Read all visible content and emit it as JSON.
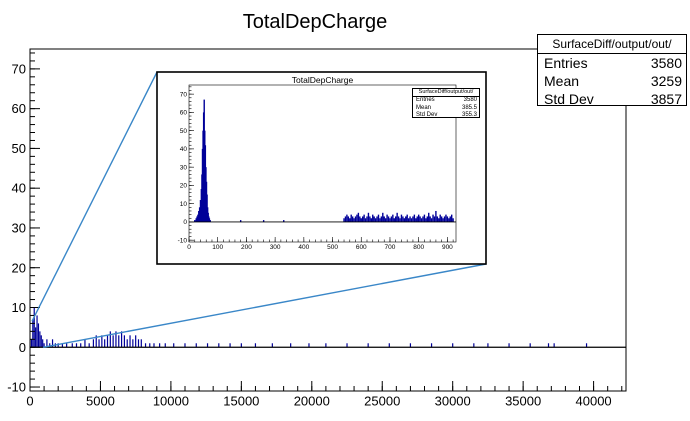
{
  "chart_data": [
    {
      "type": "bar",
      "title": "TotalDepCharge",
      "xlabel": "",
      "ylabel": "",
      "xlim": [
        0,
        42300
      ],
      "ylim": [
        -11,
        75
      ],
      "x_ticks": [
        0,
        5000,
        10000,
        15000,
        20000,
        25000,
        30000,
        35000,
        40000
      ],
      "y_ticks": [
        -10,
        0,
        10,
        20,
        30,
        40,
        50,
        60,
        70
      ],
      "bar_color": "#000099",
      "legend_position": "top-right",
      "stats": {
        "name": "SurfaceDiff/output/out/",
        "rows": [
          {
            "label": "Entries",
            "value": "3580"
          },
          {
            "label": "Mean",
            "value": "3259"
          },
          {
            "label": "Std Dev",
            "value": "3857"
          }
        ]
      },
      "bars": [
        [
          100,
          2
        ],
        [
          200,
          7
        ],
        [
          300,
          10
        ],
        [
          400,
          5
        ],
        [
          500,
          8
        ],
        [
          600,
          6
        ],
        [
          700,
          4
        ],
        [
          800,
          3
        ],
        [
          900,
          2
        ],
        [
          1000,
          1
        ],
        [
          1200,
          2
        ],
        [
          1400,
          1
        ],
        [
          1600,
          2
        ],
        [
          1800,
          1
        ],
        [
          2000,
          1
        ],
        [
          2300,
          1
        ],
        [
          2600,
          1
        ],
        [
          3000,
          1
        ],
        [
          3300,
          1
        ],
        [
          3600,
          1
        ],
        [
          3900,
          2
        ],
        [
          4200,
          1
        ],
        [
          4500,
          2
        ],
        [
          4700,
          3
        ],
        [
          4900,
          2
        ],
        [
          5100,
          3
        ],
        [
          5300,
          2
        ],
        [
          5500,
          3
        ],
        [
          5700,
          4
        ],
        [
          5900,
          3
        ],
        [
          6100,
          4
        ],
        [
          6300,
          3
        ],
        [
          6500,
          4
        ],
        [
          6700,
          3
        ],
        [
          6900,
          2
        ],
        [
          7100,
          3
        ],
        [
          7300,
          2
        ],
        [
          7500,
          3
        ],
        [
          7700,
          2
        ],
        [
          7900,
          2
        ],
        [
          8200,
          1
        ],
        [
          8500,
          1
        ],
        [
          8800,
          1
        ],
        [
          9200,
          1
        ],
        [
          9600,
          1
        ],
        [
          10200,
          1
        ],
        [
          11000,
          1
        ],
        [
          11800,
          1
        ],
        [
          12600,
          1
        ],
        [
          13400,
          1
        ],
        [
          14200,
          1
        ],
        [
          15000,
          1
        ],
        [
          16000,
          1
        ],
        [
          17200,
          1
        ],
        [
          18500,
          1
        ],
        [
          19800,
          1
        ],
        [
          21000,
          1
        ],
        [
          22500,
          1
        ],
        [
          24000,
          1
        ],
        [
          25500,
          1
        ],
        [
          27000,
          1
        ],
        [
          28500,
          1
        ],
        [
          30000,
          1
        ],
        [
          31500,
          1
        ],
        [
          32500,
          1
        ],
        [
          34000,
          1
        ],
        [
          35500,
          1
        ],
        [
          36800,
          1
        ],
        [
          37200,
          1
        ],
        [
          39500,
          1
        ]
      ]
    },
    {
      "type": "bar",
      "title": "TotalDepCharge",
      "xlabel": "",
      "ylabel": "",
      "xlim": [
        0,
        930
      ],
      "ylim": [
        -11,
        75
      ],
      "x_ticks": [
        0,
        100,
        200,
        300,
        400,
        500,
        600,
        700,
        800,
        900
      ],
      "y_ticks": [
        -10,
        0,
        10,
        20,
        30,
        40,
        50,
        60,
        70
      ],
      "bar_color": "#000099",
      "legend_position": "top-right",
      "stats": {
        "name": "SurfaceDiff/output/out/",
        "rows": [
          {
            "label": "Entries",
            "value": "3580"
          },
          {
            "label": "Mean",
            "value": "385.5"
          },
          {
            "label": "Std Dev",
            "value": "355.3"
          }
        ]
      },
      "bars": [
        [
          20,
          1
        ],
        [
          25,
          2
        ],
        [
          28,
          3
        ],
        [
          31,
          4
        ],
        [
          34,
          6
        ],
        [
          37,
          8
        ],
        [
          40,
          12
        ],
        [
          43,
          18
        ],
        [
          45,
          26
        ],
        [
          47,
          40
        ],
        [
          49,
          50
        ],
        [
          51,
          60
        ],
        [
          53,
          67
        ],
        [
          55,
          50
        ],
        [
          57,
          42
        ],
        [
          59,
          30
        ],
        [
          61,
          22
        ],
        [
          63,
          15
        ],
        [
          65,
          8
        ],
        [
          67,
          5
        ],
        [
          69,
          3
        ],
        [
          71,
          2
        ],
        [
          74,
          1
        ],
        [
          180,
          1
        ],
        [
          260,
          1
        ],
        [
          330,
          1
        ],
        [
          540,
          2
        ],
        [
          545,
          3
        ],
        [
          550,
          4
        ],
        [
          555,
          3
        ],
        [
          560,
          2
        ],
        [
          565,
          4
        ],
        [
          570,
          3
        ],
        [
          575,
          2
        ],
        [
          580,
          3
        ],
        [
          585,
          4
        ],
        [
          590,
          5
        ],
        [
          595,
          3
        ],
        [
          600,
          2
        ],
        [
          605,
          3
        ],
        [
          610,
          4
        ],
        [
          615,
          2
        ],
        [
          620,
          3
        ],
        [
          625,
          5
        ],
        [
          630,
          3
        ],
        [
          635,
          2
        ],
        [
          640,
          4
        ],
        [
          645,
          3
        ],
        [
          650,
          2
        ],
        [
          655,
          3
        ],
        [
          660,
          4
        ],
        [
          665,
          2
        ],
        [
          670,
          3
        ],
        [
          675,
          5
        ],
        [
          680,
          3
        ],
        [
          685,
          2
        ],
        [
          690,
          4
        ],
        [
          695,
          3
        ],
        [
          700,
          2
        ],
        [
          705,
          3
        ],
        [
          710,
          4
        ],
        [
          715,
          2
        ],
        [
          720,
          3
        ],
        [
          725,
          5
        ],
        [
          730,
          3
        ],
        [
          735,
          2
        ],
        [
          740,
          4
        ],
        [
          745,
          3
        ],
        [
          750,
          2
        ],
        [
          755,
          3
        ],
        [
          760,
          4
        ],
        [
          765,
          2
        ],
        [
          770,
          3
        ],
        [
          775,
          2
        ],
        [
          780,
          3
        ],
        [
          785,
          4
        ],
        [
          790,
          2
        ],
        [
          795,
          3
        ],
        [
          800,
          4
        ],
        [
          805,
          3
        ],
        [
          810,
          2
        ],
        [
          815,
          3
        ],
        [
          820,
          4
        ],
        [
          825,
          2
        ],
        [
          830,
          3
        ],
        [
          835,
          5
        ],
        [
          840,
          3
        ],
        [
          845,
          2
        ],
        [
          850,
          4
        ],
        [
          855,
          3
        ],
        [
          860,
          6
        ],
        [
          865,
          3
        ],
        [
          870,
          2
        ],
        [
          875,
          4
        ],
        [
          880,
          3
        ],
        [
          885,
          2
        ],
        [
          890,
          3
        ],
        [
          895,
          4
        ],
        [
          900,
          3
        ],
        [
          905,
          2
        ],
        [
          910,
          3
        ],
        [
          915,
          4
        ],
        [
          920,
          2
        ]
      ]
    }
  ]
}
